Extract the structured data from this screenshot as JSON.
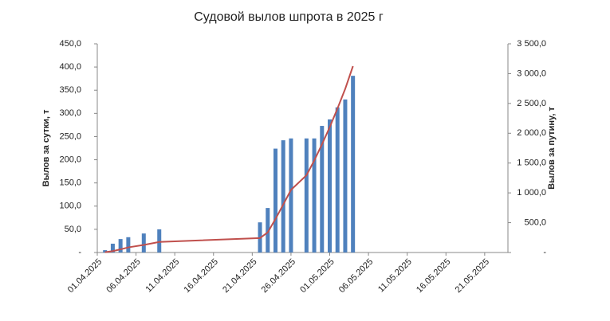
{
  "chart_data": {
    "type": "bar",
    "title": "Судовой вылов шпрота в 2025 г",
    "y_label": "Вылов за сутки,  т",
    "y2_label": "Вылов за путину, т",
    "x": [
      "02.04.2025",
      "03.04.2025",
      "04.04.2025",
      "05.04.2025",
      "07.04.2025",
      "09.04.2025",
      "22.04.2025",
      "23.04.2025",
      "24.04.2025",
      "25.04.2025",
      "26.04.2025",
      "28.04.2025",
      "29.04.2025",
      "30.04.2025",
      "01.05.2025",
      "02.05.2025",
      "03.05.2025",
      "04.05.2025"
    ],
    "series": [
      {
        "name": "Вылов за сутки",
        "type": "bar",
        "color": "#4f81bd",
        "values": [
          5,
          19,
          29,
          33,
          41,
          50,
          65,
          96,
          224,
          242,
          246,
          246,
          246,
          273,
          287,
          313,
          330,
          381
        ]
      },
      {
        "name": "Вылов за путину",
        "type": "line",
        "axis": "y2",
        "color": "#c0504d",
        "values": [
          5,
          24,
          53,
          86,
          127,
          177,
          242,
          338,
          562,
          804,
          1050,
          1296,
          1542,
          1815,
          2102,
          2415,
          2745,
          3126
        ]
      }
    ],
    "xlim": [
      "01.04.2025",
      "24.05.2025"
    ],
    "xticks": [
      "01.04.2025",
      "06.04.2025",
      "11.04.2025",
      "16.04.2025",
      "21.04.2025",
      "26.04.2025",
      "01.05.2025",
      "06.05.2025",
      "11.05.2025",
      "16.05.2025",
      "21.05.2025"
    ],
    "ylim": [
      0,
      450
    ],
    "yticks": [
      {
        "value": 0,
        "label": "-"
      },
      {
        "value": 50,
        "label": "50,0"
      },
      {
        "value": 100,
        "label": "100,0"
      },
      {
        "value": 150,
        "label": "150,0"
      },
      {
        "value": 200,
        "label": "200,0"
      },
      {
        "value": 250,
        "label": "250,0"
      },
      {
        "value": 300,
        "label": "300,0"
      },
      {
        "value": 350,
        "label": "350,0"
      },
      {
        "value": 400,
        "label": "400,0"
      },
      {
        "value": 450,
        "label": "450,0"
      }
    ],
    "y2lim": [
      0,
      3500
    ],
    "y2ticks": [
      {
        "value": 0,
        "label": "-"
      },
      {
        "value": 500,
        "label": "500,0"
      },
      {
        "value": 1000,
        "label": "1 000,0"
      },
      {
        "value": 1500,
        "label": "1 500,0"
      },
      {
        "value": 2000,
        "label": "2 000,0"
      },
      {
        "value": 2500,
        "label": "2 500,0"
      },
      {
        "value": 3000,
        "label": "3 000,0"
      },
      {
        "value": 3500,
        "label": "3 500,0"
      }
    ],
    "grid": false
  }
}
